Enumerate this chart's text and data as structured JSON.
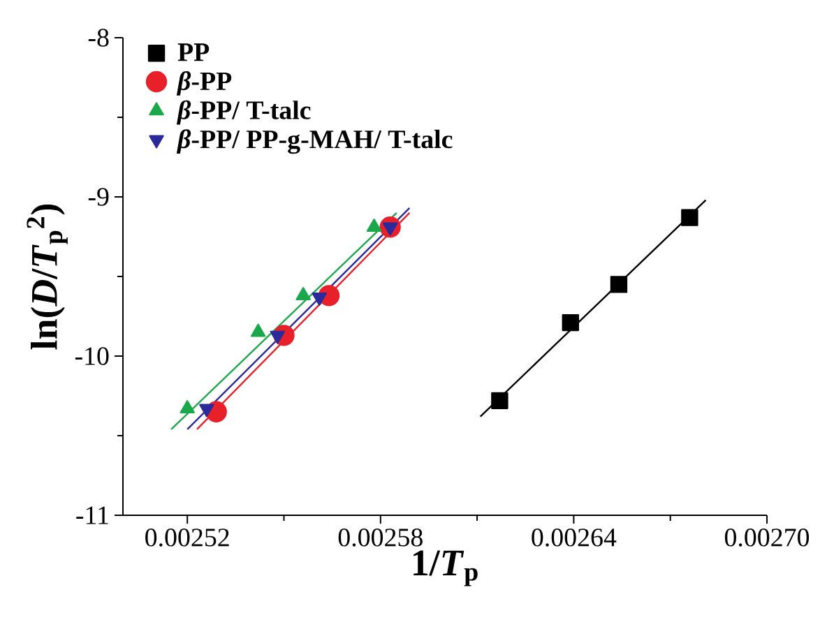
{
  "chart_data": {
    "type": "scatter",
    "xlabel": "1/*T*$_{p}$",
    "ylabel": "ln(*D*/*T*$_{p}$$^{2}$)",
    "xlim": [
      0.0025,
      0.0027
    ],
    "ylim": [
      -11,
      -8
    ],
    "xticks": [
      0.00252,
      0.00258,
      0.00264,
      {
        "value": 0.0027,
        "label": "0.00270"
      }
    ],
    "yticks": [
      -11,
      -10,
      -9,
      -8
    ],
    "legend": "top left",
    "grid": false,
    "series": [
      {
        "name": "PP",
        "color": "#000000",
        "marker": "square",
        "x": [
          0.002617,
          0.002639,
          0.002654,
          0.002676
        ],
        "values": [
          -10.28,
          -9.79,
          -9.55,
          -9.13
        ]
      },
      {
        "name": "*β*-PP",
        "color": "#e8202a",
        "marker": "circle",
        "x": [
          0.002529,
          0.00255,
          0.002564,
          0.002583
        ],
        "values": [
          -10.35,
          -9.87,
          -9.62,
          -9.19
        ]
      },
      {
        "name": "*β*-PP/ T-talc",
        "color": "#1aa84a",
        "marker": "triangle",
        "x": [
          0.00252,
          0.002542,
          0.002556,
          0.002578
        ],
        "values": [
          -10.33,
          -9.85,
          -9.62,
          -9.19
        ]
      },
      {
        "name": "*β*-PP/ PP-g-MAH/ T-talc",
        "color": "#2a2a9a",
        "marker": "triangle down",
        "x": [
          0.002526,
          0.002548,
          0.002561,
          0.002583
        ],
        "values": [
          -10.33,
          -9.87,
          -9.63,
          -9.19
        ]
      },
      {
        "type": "line",
        "color": "#000000",
        "marker": "none",
        "x": [
          0.002611,
          0.002681
        ],
        "values": [
          -10.38,
          -9.02
        ]
      },
      {
        "type": "line",
        "color": "#e8202a",
        "marker": "none",
        "x": [
          0.002523,
          0.002589
        ],
        "values": [
          -10.46,
          -9.1
        ]
      },
      {
        "type": "line",
        "color": "#1aa84a",
        "marker": "none",
        "x": [
          0.002515,
          0.002585
        ],
        "values": [
          -10.46,
          -9.1
        ]
      },
      {
        "type": "line",
        "color": "#2a2a9a",
        "marker": "none",
        "x": [
          0.00252,
          0.002589
        ],
        "values": [
          -10.46,
          -9.07
        ]
      }
    ]
  }
}
